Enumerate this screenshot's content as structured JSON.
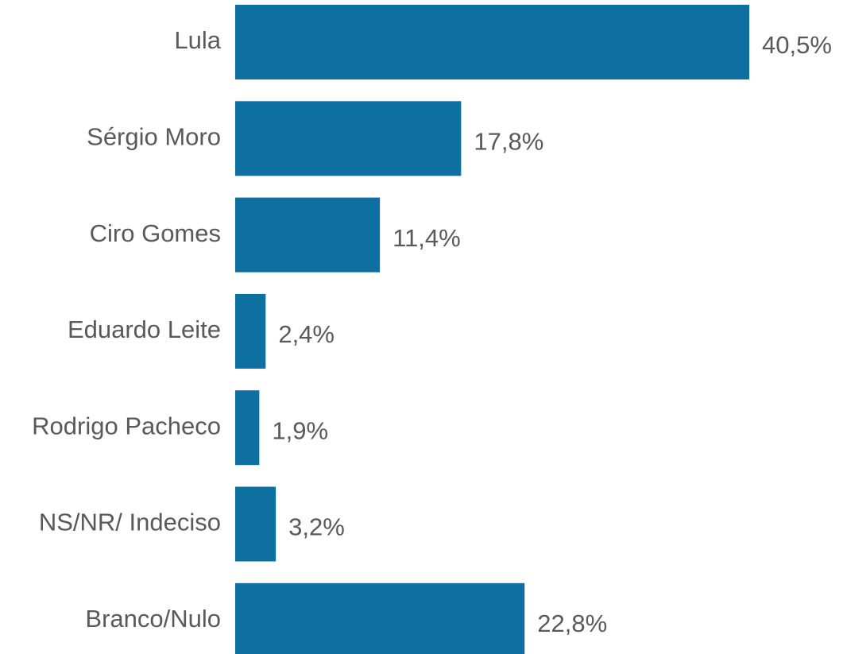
{
  "chart_data": {
    "type": "bar",
    "orientation": "horizontal",
    "categories": [
      "Lula",
      "Sérgio Moro",
      "Ciro Gomes",
      "Eduardo Leite",
      "Rodrigo Pacheco",
      "NS/NR/ Indeciso",
      "Branco/Nulo"
    ],
    "values": [
      40.5,
      17.8,
      11.4,
      2.4,
      1.9,
      3.2,
      22.8
    ],
    "value_labels": [
      "40,5%",
      "17,8%",
      "11,4%",
      "2,4%",
      "1,9%",
      "3,2%",
      "22,8%"
    ],
    "color": "#0e70a0"
  }
}
